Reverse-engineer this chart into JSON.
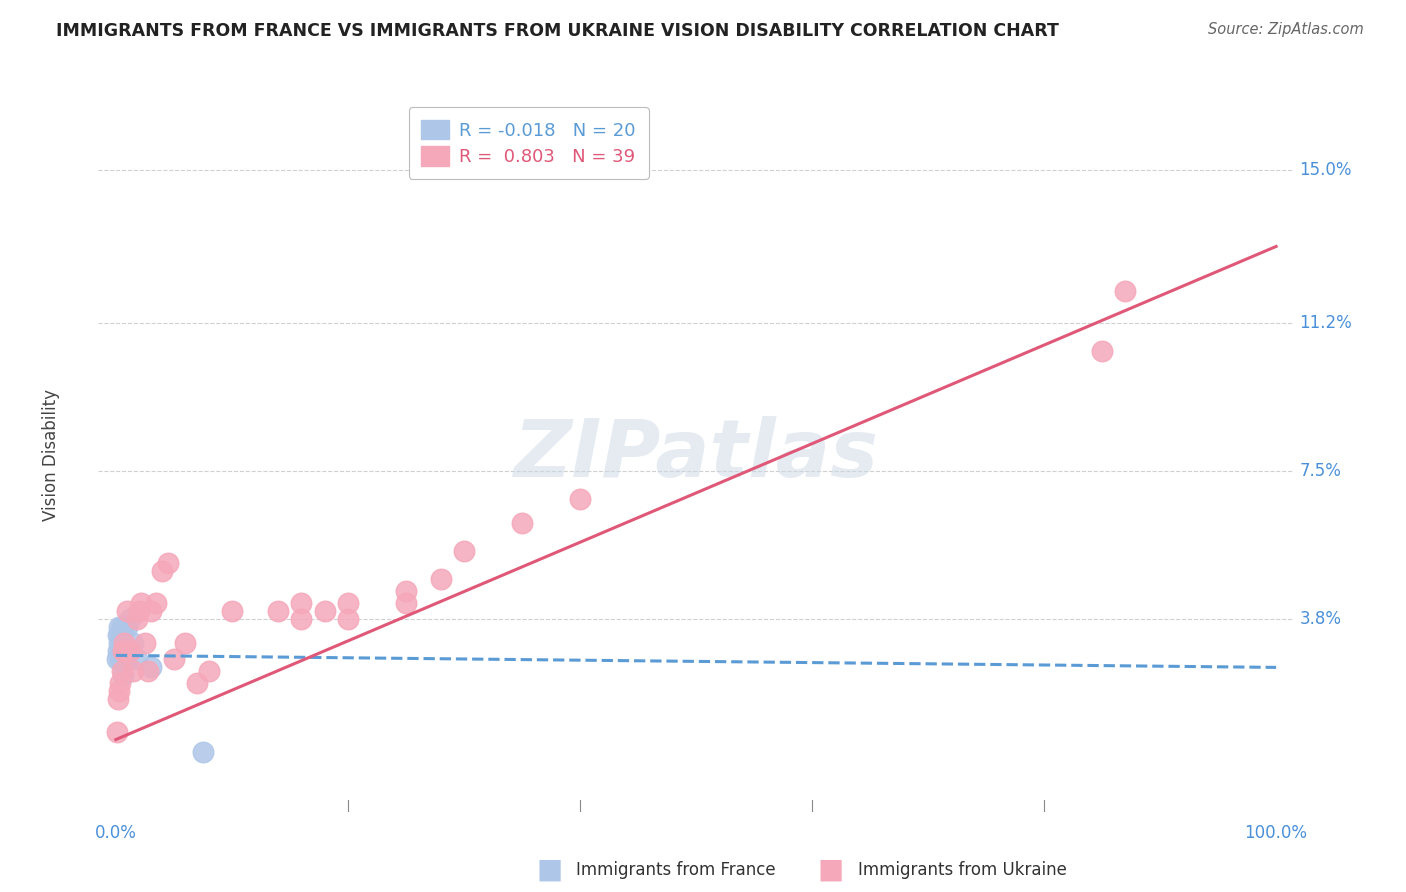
{
  "title": "IMMIGRANTS FROM FRANCE VS IMMIGRANTS FROM UKRAINE VISION DISABILITY CORRELATION CHART",
  "source": "Source: ZipAtlas.com",
  "ylabel": "Vision Disability",
  "ytick_values": [
    0.038,
    0.075,
    0.112,
    0.15
  ],
  "ytick_labels": [
    "3.8%",
    "7.5%",
    "11.2%",
    "15.0%"
  ],
  "legend_france_text": "R = -0.018   N = 20",
  "legend_ukraine_text": "R =  0.803   N = 39",
  "legend_label_france": "Immigrants from France",
  "legend_label_ukraine": "Immigrants from Ukraine",
  "france_fill_color": "#aec6e8",
  "ukraine_fill_color": "#f5a8ba",
  "france_line_color": "#5b9bd5",
  "ukraine_line_color": "#e05878",
  "france_scatter_x": [
    0.001,
    0.002,
    0.002,
    0.003,
    0.003,
    0.004,
    0.004,
    0.005,
    0.005,
    0.006,
    0.006,
    0.007,
    0.008,
    0.009,
    0.01,
    0.012,
    0.015,
    0.018,
    0.03,
    0.075
  ],
  "france_scatter_y": [
    0.028,
    0.034,
    0.03,
    0.036,
    0.032,
    0.028,
    0.034,
    0.036,
    0.03,
    0.024,
    0.032,
    0.036,
    0.03,
    0.028,
    0.036,
    0.038,
    0.032,
    0.028,
    0.026,
    0.005
  ],
  "ukraine_scatter_x": [
    0.001,
    0.002,
    0.003,
    0.004,
    0.005,
    0.006,
    0.007,
    0.008,
    0.01,
    0.012,
    0.015,
    0.018,
    0.02,
    0.022,
    0.025,
    0.028,
    0.03,
    0.035,
    0.04,
    0.045,
    0.05,
    0.06,
    0.07,
    0.08,
    0.1,
    0.14,
    0.16,
    0.2,
    0.25,
    0.3,
    0.35,
    0.4,
    0.16,
    0.18,
    0.2,
    0.25,
    0.28,
    0.85,
    0.87
  ],
  "ukraine_scatter_y": [
    0.01,
    0.018,
    0.02,
    0.022,
    0.025,
    0.03,
    0.032,
    0.03,
    0.04,
    0.03,
    0.025,
    0.038,
    0.04,
    0.042,
    0.032,
    0.025,
    0.04,
    0.042,
    0.05,
    0.052,
    0.028,
    0.032,
    0.022,
    0.025,
    0.04,
    0.04,
    0.042,
    0.042,
    0.045,
    0.055,
    0.062,
    0.068,
    0.038,
    0.04,
    0.038,
    0.042,
    0.048,
    0.105,
    0.12
  ],
  "xmin": 0.0,
  "xmax": 1.0,
  "ymin": -0.01,
  "ymax": 0.168,
  "background_color": "#ffffff",
  "grid_color": "#d0d0d0",
  "watermark_color": "#ccd8e5",
  "watermark_alpha": 0.5,
  "title_color": "#222222",
  "title_fontsize": 12.5,
  "source_color": "#666666",
  "ylabel_color": "#444444",
  "axis_label_color": "#4a90d9",
  "tick_label_fontsize": 12
}
